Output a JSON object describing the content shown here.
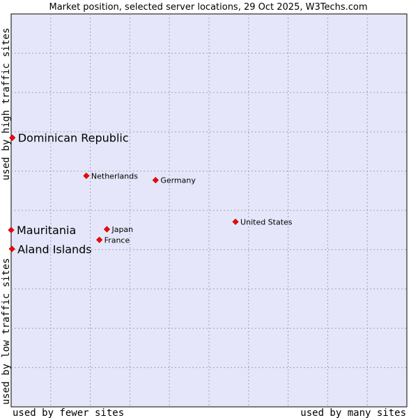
{
  "chart_data": {
    "type": "scatter",
    "title": "Market position, selected server locations, 29 Oct 2025, W3Techs.com",
    "xlabel_left": "used by fewer sites",
    "xlabel_right": "used by many sites",
    "ylabel_bottom": "used by low traffic sites",
    "ylabel_top": "used by high traffic sites",
    "xlim": [
      0,
      100
    ],
    "ylim": [
      0,
      100
    ],
    "grid": true,
    "colors": {
      "plot_background": "#e6e6fa",
      "grid": "#a0a0b8",
      "marker": "#ff0000",
      "marker_edge": "#b00000"
    },
    "points": [
      {
        "label": "Dominican Republic",
        "x": 0.3,
        "y": 68.5,
        "highlight": true
      },
      {
        "label": "Netherlands",
        "x": 19.0,
        "y": 58.8,
        "highlight": false
      },
      {
        "label": "Germany",
        "x": 36.5,
        "y": 57.7,
        "highlight": false
      },
      {
        "label": "United States",
        "x": 56.7,
        "y": 47.1,
        "highlight": false
      },
      {
        "label": "Japan",
        "x": 24.2,
        "y": 45.2,
        "highlight": false
      },
      {
        "label": "France",
        "x": 22.3,
        "y": 42.5,
        "highlight": false
      },
      {
        "label": "Mauritania",
        "x": 0.0,
        "y": 45.0,
        "highlight": true
      },
      {
        "label": "Aland Islands",
        "x": 0.2,
        "y": 40.2,
        "highlight": true
      }
    ]
  }
}
